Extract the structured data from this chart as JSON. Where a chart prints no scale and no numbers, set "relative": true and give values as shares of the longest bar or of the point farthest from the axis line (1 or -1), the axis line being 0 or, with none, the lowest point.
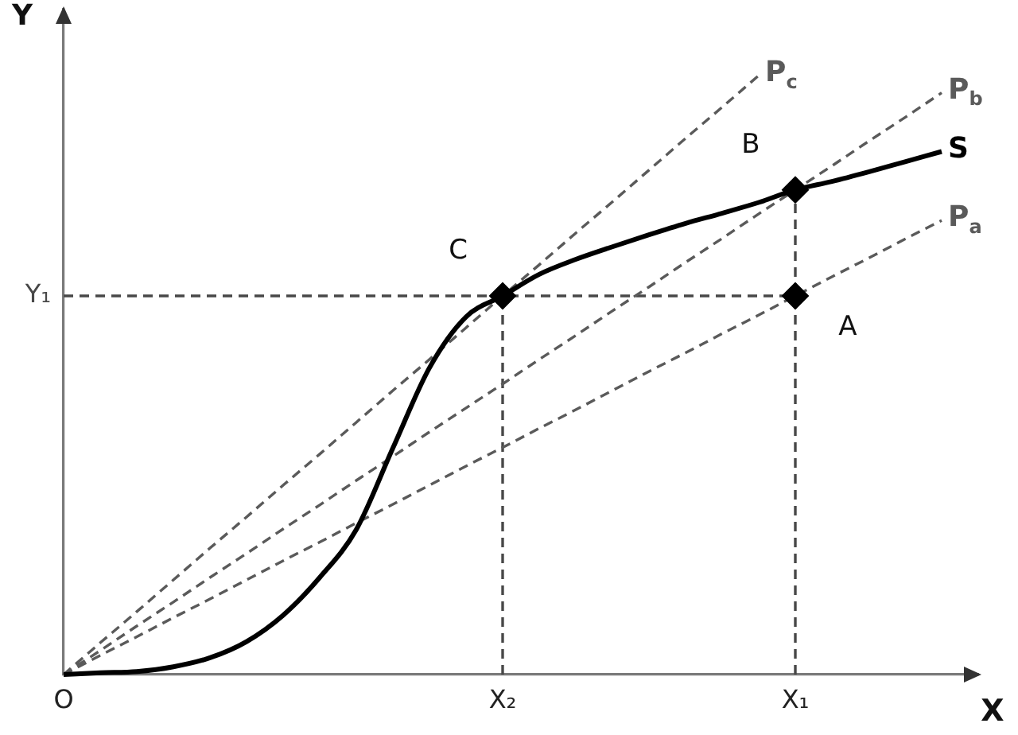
{
  "chart_data": {
    "type": "line",
    "relative": true,
    "xlabel": "X",
    "ylabel": "Y",
    "categories": [
      "O",
      null,
      null,
      null,
      null,
      null,
      null,
      null,
      null,
      null,
      null,
      null,
      "X₂",
      null,
      null,
      null,
      null,
      null,
      null,
      null,
      "X₁",
      null,
      null,
      null,
      null,
      null
    ],
    "legend": false,
    "series": [
      {
        "name": "S",
        "color": "#000000",
        "line_style": "solid",
        "values": [
          0,
          0.003,
          0.005,
          0.013,
          0.028,
          0.055,
          0.099,
          0.162,
          0.242,
          0.378,
          0.512,
          0.597,
          0.632,
          0.668,
          0.693,
          0.714,
          0.734,
          0.753,
          0.77,
          0.788,
          0.809,
          0.823,
          0.839,
          0.856,
          0.873,
          null
        ]
      },
      {
        "name": "P$_{c}$",
        "color": "#5a5a5a",
        "line_style": "dashed",
        "values": [
          0,
          0.053,
          0.105,
          0.158,
          0.211,
          0.263,
          0.316,
          0.368,
          0.421,
          0.474,
          0.526,
          0.579,
          0.632,
          0.684,
          0.737,
          0.789,
          0.842,
          0.895,
          0.947,
          1,
          null,
          null,
          null,
          null,
          null,
          null
        ]
      },
      {
        "name": "P$_{b}$",
        "color": "#5a5a5a",
        "line_style": "dashed",
        "values": [
          0,
          0.04,
          0.081,
          0.121,
          0.162,
          0.202,
          0.243,
          0.283,
          0.324,
          0.364,
          0.405,
          0.445,
          0.485,
          0.526,
          0.566,
          0.607,
          0.647,
          0.688,
          0.728,
          0.769,
          0.809,
          0.849,
          0.89,
          0.93,
          0.971,
          null
        ]
      },
      {
        "name": "P$_{a}$",
        "color": "#5a5a5a",
        "line_style": "dashed",
        "values": [
          0,
          0.032,
          0.063,
          0.095,
          0.126,
          0.158,
          0.19,
          0.221,
          0.253,
          0.284,
          0.316,
          0.348,
          0.379,
          0.411,
          0.442,
          0.474,
          0.506,
          0.537,
          0.569,
          0.6,
          0.632,
          0.664,
          0.695,
          0.727,
          0.758,
          null
        ]
      },
      {
        "name": "Y₁",
        "color": "#484848",
        "line_style": "dashed",
        "values": [
          0.632,
          0.632,
          0.632,
          0.632,
          0.632,
          0.632,
          0.632,
          0.632,
          0.632,
          0.632,
          0.632,
          0.632,
          0.632,
          0.632,
          0.632,
          0.632,
          0.632,
          0.632,
          0.632,
          0.632,
          0.632,
          null,
          null,
          null,
          null,
          null
        ]
      },
      {
        "color": "#484848",
        "line_style": "dashed",
        "x": [
          "X₂",
          "X₂"
        ],
        "values": [
          0,
          0.632
        ]
      },
      {
        "color": "#484848",
        "line_style": "dashed",
        "x": [
          "X₁",
          "X₁"
        ],
        "values": [
          0,
          0.809
        ]
      },
      {
        "type": "scatter",
        "color": "#000000",
        "marker": "diamond",
        "x": [
          "X₁",
          "X₁",
          "X₂"
        ],
        "values": [
          0.632,
          0.809,
          0.632
        ]
      }
    ],
    "annotations": [
      {
        "text": "A",
        "x": "X₁",
        "y": 0.632
      },
      {
        "text": "B",
        "x": "X₁",
        "y": 0.809
      },
      {
        "text": "C",
        "x": "X₂",
        "y": 0.632
      }
    ]
  }
}
